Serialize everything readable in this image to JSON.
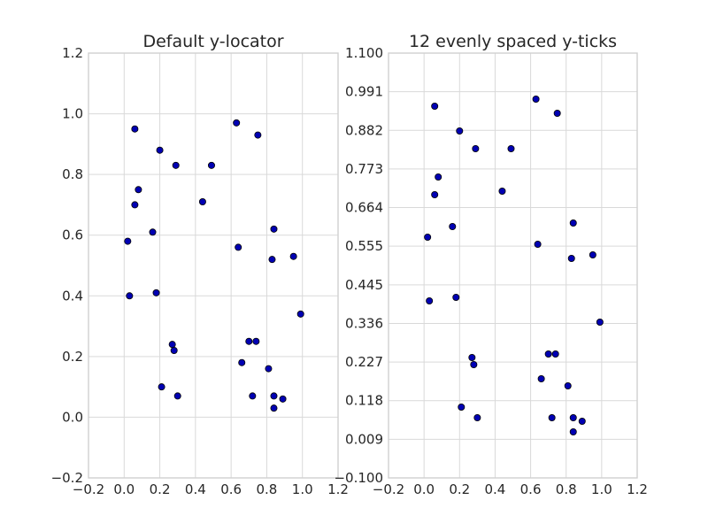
{
  "colors": {
    "marker_fill": "#0000b3",
    "marker_edge": "#000000",
    "grid": "#d9d9d9",
    "frame": "#cfcfcf",
    "text": "#262626"
  },
  "chart_data": [
    {
      "type": "scatter",
      "title": "Default y-locator",
      "xlabel": "",
      "ylabel": "",
      "xlim": [
        -0.2,
        1.2
      ],
      "ylim": [
        -0.2,
        1.2
      ],
      "grid": true,
      "xticks": [
        "−0.2",
        "0.0",
        "0.2",
        "0.4",
        "0.6",
        "0.8",
        "1.0",
        "1.2"
      ],
      "yticks": [
        "−0.2",
        "0.0",
        "0.2",
        "0.4",
        "0.6",
        "0.8",
        "1.0",
        "1.2"
      ],
      "points": [
        {
          "x": 0.06,
          "y": 0.95
        },
        {
          "x": 0.2,
          "y": 0.88
        },
        {
          "x": 0.29,
          "y": 0.83
        },
        {
          "x": 0.49,
          "y": 0.83
        },
        {
          "x": 0.63,
          "y": 0.97
        },
        {
          "x": 0.75,
          "y": 0.93
        },
        {
          "x": 0.08,
          "y": 0.75
        },
        {
          "x": 0.06,
          "y": 0.7
        },
        {
          "x": 0.44,
          "y": 0.71
        },
        {
          "x": 0.02,
          "y": 0.58
        },
        {
          "x": 0.16,
          "y": 0.61
        },
        {
          "x": 0.64,
          "y": 0.56
        },
        {
          "x": 0.84,
          "y": 0.62
        },
        {
          "x": 0.83,
          "y": 0.52
        },
        {
          "x": 0.95,
          "y": 0.53
        },
        {
          "x": 0.03,
          "y": 0.4
        },
        {
          "x": 0.18,
          "y": 0.41
        },
        {
          "x": 0.99,
          "y": 0.34
        },
        {
          "x": 0.27,
          "y": 0.24
        },
        {
          "x": 0.28,
          "y": 0.22
        },
        {
          "x": 0.7,
          "y": 0.25
        },
        {
          "x": 0.74,
          "y": 0.25
        },
        {
          "x": 0.66,
          "y": 0.18
        },
        {
          "x": 0.81,
          "y": 0.16
        },
        {
          "x": 0.21,
          "y": 0.1
        },
        {
          "x": 0.3,
          "y": 0.07
        },
        {
          "x": 0.72,
          "y": 0.07
        },
        {
          "x": 0.84,
          "y": 0.07
        },
        {
          "x": 0.89,
          "y": 0.06
        },
        {
          "x": 0.84,
          "y": 0.03
        }
      ]
    },
    {
      "type": "scatter",
      "title": "12 evenly spaced y-ticks",
      "xlabel": "",
      "ylabel": "",
      "xlim": [
        -0.2,
        1.2
      ],
      "ylim": [
        -0.1,
        1.1
      ],
      "grid": true,
      "xticks": [
        "−0.2",
        "0.0",
        "0.2",
        "0.4",
        "0.6",
        "0.8",
        "1.0",
        "1.2"
      ],
      "yticks": [
        "−0.100",
        "0.009",
        "0.118",
        "0.227",
        "0.336",
        "0.445",
        "0.555",
        "0.664",
        "0.773",
        "0.882",
        "0.991",
        "1.100"
      ],
      "points": [
        {
          "x": 0.06,
          "y": 0.95
        },
        {
          "x": 0.2,
          "y": 0.88
        },
        {
          "x": 0.29,
          "y": 0.83
        },
        {
          "x": 0.49,
          "y": 0.83
        },
        {
          "x": 0.63,
          "y": 0.97
        },
        {
          "x": 0.75,
          "y": 0.93
        },
        {
          "x": 0.08,
          "y": 0.75
        },
        {
          "x": 0.06,
          "y": 0.7
        },
        {
          "x": 0.44,
          "y": 0.71
        },
        {
          "x": 0.02,
          "y": 0.58
        },
        {
          "x": 0.16,
          "y": 0.61
        },
        {
          "x": 0.64,
          "y": 0.56
        },
        {
          "x": 0.84,
          "y": 0.62
        },
        {
          "x": 0.83,
          "y": 0.52
        },
        {
          "x": 0.95,
          "y": 0.53
        },
        {
          "x": 0.03,
          "y": 0.4
        },
        {
          "x": 0.18,
          "y": 0.41
        },
        {
          "x": 0.99,
          "y": 0.34
        },
        {
          "x": 0.27,
          "y": 0.24
        },
        {
          "x": 0.28,
          "y": 0.22
        },
        {
          "x": 0.7,
          "y": 0.25
        },
        {
          "x": 0.74,
          "y": 0.25
        },
        {
          "x": 0.66,
          "y": 0.18
        },
        {
          "x": 0.81,
          "y": 0.16
        },
        {
          "x": 0.21,
          "y": 0.1
        },
        {
          "x": 0.3,
          "y": 0.07
        },
        {
          "x": 0.72,
          "y": 0.07
        },
        {
          "x": 0.84,
          "y": 0.07
        },
        {
          "x": 0.89,
          "y": 0.06
        },
        {
          "x": 0.84,
          "y": 0.03
        }
      ]
    }
  ]
}
